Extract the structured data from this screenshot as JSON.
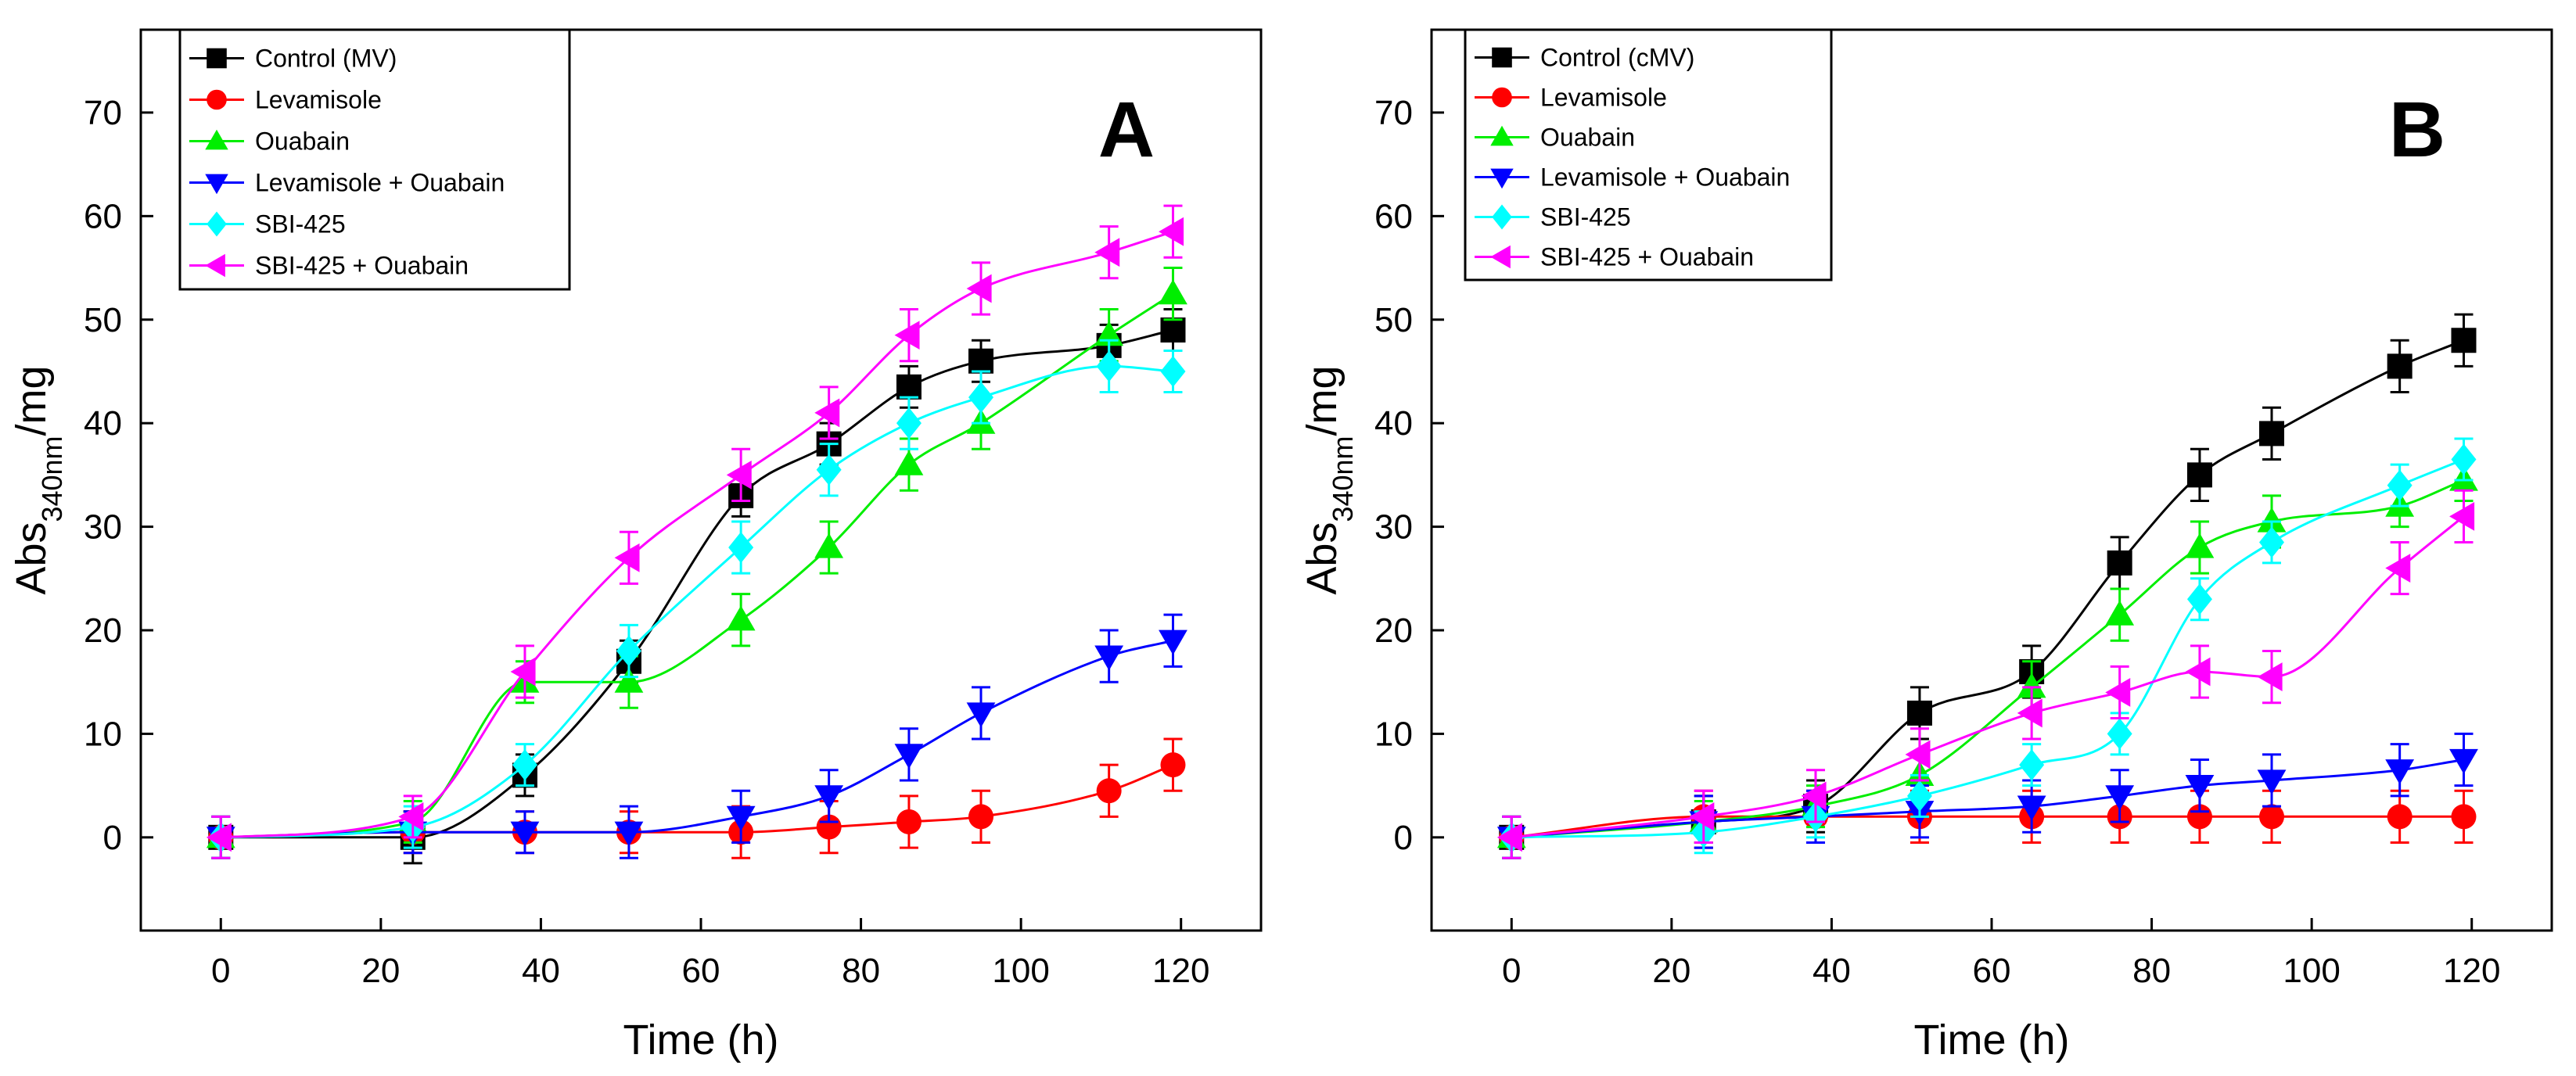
{
  "chart_data": [
    {
      "type": "line",
      "panel_label": "A",
      "xlabel": "Time (h)",
      "ylabel": {
        "main": "Abs",
        "sub": "340nm",
        "suffix": "/mg"
      },
      "xlim": [
        -10,
        130
      ],
      "ylim": [
        -9,
        78
      ],
      "xticks": [
        0,
        20,
        40,
        60,
        80,
        100,
        120
      ],
      "yticks": [
        0,
        10,
        20,
        30,
        40,
        50,
        60,
        70
      ],
      "legend_position": "top-left",
      "series": [
        {
          "name": "Control (MV)",
          "color": "#000000",
          "marker": "square",
          "x": [
            0,
            24,
            38,
            51,
            65,
            76,
            86,
            95,
            111,
            119
          ],
          "y": [
            0,
            0,
            6,
            17,
            33,
            38,
            43.5,
            46,
            47.5,
            49
          ],
          "err": [
            2,
            2.5,
            2,
            2,
            2,
            2,
            2,
            2,
            2,
            2
          ]
        },
        {
          "name": "Levamisole",
          "color": "#ff0000",
          "marker": "circle",
          "x": [
            0,
            24,
            38,
            51,
            65,
            76,
            86,
            95,
            111,
            119
          ],
          "y": [
            0,
            0.5,
            0.5,
            0.5,
            0.5,
            1,
            1.5,
            2,
            4.5,
            7
          ],
          "err": [
            2,
            2,
            2,
            2,
            2.5,
            2.5,
            2.5,
            2.5,
            2.5,
            2.5
          ]
        },
        {
          "name": "Ouabain",
          "color": "#00ee00",
          "marker": "triangle-up",
          "x": [
            0,
            24,
            38,
            51,
            65,
            76,
            86,
            95,
            111,
            119
          ],
          "y": [
            0,
            1.5,
            15,
            15,
            21,
            28,
            36,
            40,
            48.5,
            52.5
          ],
          "err": [
            2,
            2,
            2,
            2.5,
            2.5,
            2.5,
            2.5,
            2.5,
            2.5,
            2.5
          ]
        },
        {
          "name": "Levamisole + Ouabain",
          "color": "#0000ff",
          "marker": "triangle-down",
          "x": [
            0,
            24,
            38,
            51,
            65,
            76,
            86,
            95,
            111,
            119
          ],
          "y": [
            0,
            0.5,
            0.5,
            0.5,
            2,
            4,
            8,
            12,
            17.5,
            19
          ],
          "err": [
            2,
            2,
            2,
            2.5,
            2.5,
            2.5,
            2.5,
            2.5,
            2.5,
            2.5
          ]
        },
        {
          "name": "SBI-425",
          "color": "#00ffff",
          "marker": "diamond",
          "x": [
            0,
            24,
            38,
            51,
            65,
            76,
            86,
            95,
            111,
            119
          ],
          "y": [
            0,
            1,
            7,
            18,
            28,
            35.5,
            40,
            42.5,
            45.5,
            45
          ],
          "err": [
            2,
            2,
            2,
            2.5,
            2.5,
            2.5,
            2.5,
            2.5,
            2.5,
            2
          ]
        },
        {
          "name": "SBI-425 + Ouabain",
          "color": "#ff00ff",
          "marker": "triangle-left",
          "x": [
            0,
            24,
            38,
            51,
            65,
            76,
            86,
            95,
            111,
            119
          ],
          "y": [
            0,
            2,
            16,
            27,
            35,
            41,
            48.5,
            53,
            56.5,
            58.5
          ],
          "err": [
            2,
            2,
            2.5,
            2.5,
            2.5,
            2.5,
            2.5,
            2.5,
            2.5,
            2.5
          ]
        }
      ]
    },
    {
      "type": "line",
      "panel_label": "B",
      "xlabel": "Time (h)",
      "ylabel": {
        "main": "Abs",
        "sub": "340nm",
        "suffix": "/mg"
      },
      "xlim": [
        -10,
        130
      ],
      "ylim": [
        -9,
        78
      ],
      "xticks": [
        0,
        20,
        40,
        60,
        80,
        100,
        120
      ],
      "yticks": [
        0,
        10,
        20,
        30,
        40,
        50,
        60,
        70
      ],
      "legend_position": "top-left",
      "series": [
        {
          "name": "Control (cMV)",
          "color": "#000000",
          "marker": "square",
          "x": [
            0,
            24,
            38,
            51,
            65,
            76,
            86,
            95,
            111,
            119
          ],
          "y": [
            0,
            1.5,
            3,
            12,
            16,
            26.5,
            35,
            39,
            45.5,
            48
          ],
          "err": [
            2,
            2.5,
            2.5,
            2.5,
            2.5,
            2.5,
            2.5,
            2.5,
            2.5,
            2.5
          ]
        },
        {
          "name": "Levamisole",
          "color": "#ff0000",
          "marker": "circle",
          "x": [
            0,
            24,
            38,
            51,
            65,
            76,
            86,
            95,
            111,
            119
          ],
          "y": [
            0,
            2,
            2,
            2,
            2,
            2,
            2,
            2,
            2,
            2
          ],
          "err": [
            2,
            2.5,
            2.5,
            2.5,
            2.5,
            2.5,
            2.5,
            2.5,
            2.5,
            2.5
          ]
        },
        {
          "name": "Ouabain",
          "color": "#00ee00",
          "marker": "triangle-up",
          "x": [
            0,
            24,
            38,
            51,
            65,
            76,
            86,
            95,
            111,
            119
          ],
          "y": [
            0,
            1.5,
            3,
            6,
            14.5,
            21.5,
            28,
            30.5,
            32,
            34.5
          ],
          "err": [
            2,
            2,
            2,
            2,
            2.5,
            2.5,
            2.5,
            2.5,
            2,
            2
          ]
        },
        {
          "name": "Levamisole + Ouabain",
          "color": "#0000ff",
          "marker": "triangle-down",
          "x": [
            0,
            24,
            38,
            51,
            65,
            76,
            86,
            95,
            111,
            119
          ],
          "y": [
            0,
            1.5,
            2,
            2.5,
            3,
            4,
            5,
            5.5,
            6.5,
            7.5
          ],
          "err": [
            2,
            2.5,
            2.5,
            2.5,
            2.5,
            2.5,
            2.5,
            2.5,
            2.5,
            2.5
          ]
        },
        {
          "name": "SBI-425",
          "color": "#00ffff",
          "marker": "diamond",
          "x": [
            0,
            24,
            38,
            51,
            65,
            76,
            86,
            95,
            111,
            119
          ],
          "y": [
            0,
            0.5,
            2,
            4,
            7,
            10,
            23,
            28.5,
            34,
            36.5
          ],
          "err": [
            2,
            2,
            2,
            2,
            2,
            2,
            2,
            2,
            2,
            2
          ]
        },
        {
          "name": "SBI-425 + Ouabain",
          "color": "#ff00ff",
          "marker": "triangle-left",
          "x": [
            0,
            24,
            38,
            51,
            65,
            76,
            86,
            95,
            111,
            119
          ],
          "y": [
            0,
            2,
            4,
            8,
            12,
            14,
            16,
            15.5,
            26,
            31
          ],
          "err": [
            2,
            2.5,
            2.5,
            2.5,
            2.5,
            2.5,
            2.5,
            2.5,
            2.5,
            2.5
          ]
        }
      ]
    }
  ]
}
